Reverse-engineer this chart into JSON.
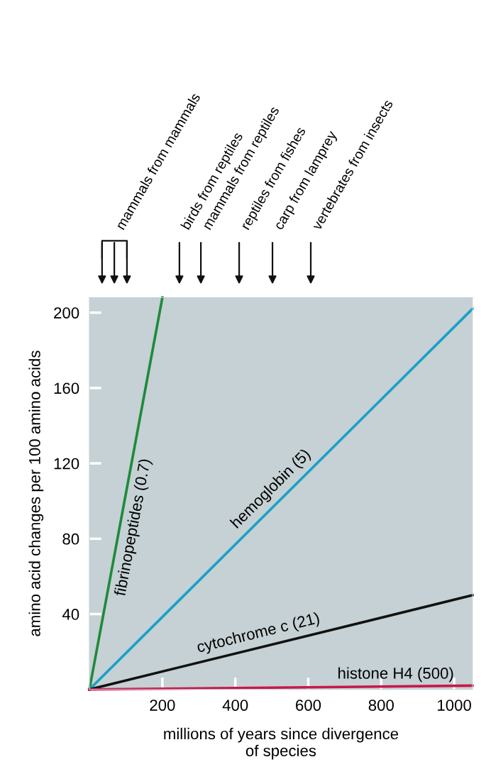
{
  "chart_data": {
    "type": "line",
    "xlabel": "millions of years since divergence\nof species",
    "ylabel": "amino acid changes per 100 amino acids",
    "xlim": [
      0,
      1050
    ],
    "ylim": [
      0,
      208
    ],
    "xticks": [
      200,
      400,
      600,
      800,
      1000
    ],
    "yticks": [
      40,
      80,
      120,
      160,
      200
    ],
    "grid": false,
    "legend": false,
    "marker": "none",
    "line_style": "solid",
    "series": [
      {
        "name": "fibrinopeptides (0.7)",
        "color": "#1f8a3a",
        "x": [
          0,
          200
        ],
        "values": [
          0,
          208
        ]
      },
      {
        "name": "hemoglobin (5)",
        "color": "#1aa0c8",
        "x": [
          0,
          1050
        ],
        "values": [
          0,
          202
        ]
      },
      {
        "name": "cytochrome c (21)",
        "color": "#111111",
        "x": [
          0,
          1050
        ],
        "values": [
          0,
          50
        ]
      },
      {
        "name": "histone H4 (500)",
        "color": "#c8184a",
        "x": [
          0,
          1050
        ],
        "values": [
          0,
          2
        ]
      }
    ],
    "annotations": [
      "mammals from mammals",
      "birds from reptiles",
      "mammals from reptiles",
      "reptiles from fishes",
      "carp from lamprey",
      "vertebrates from insects"
    ]
  }
}
